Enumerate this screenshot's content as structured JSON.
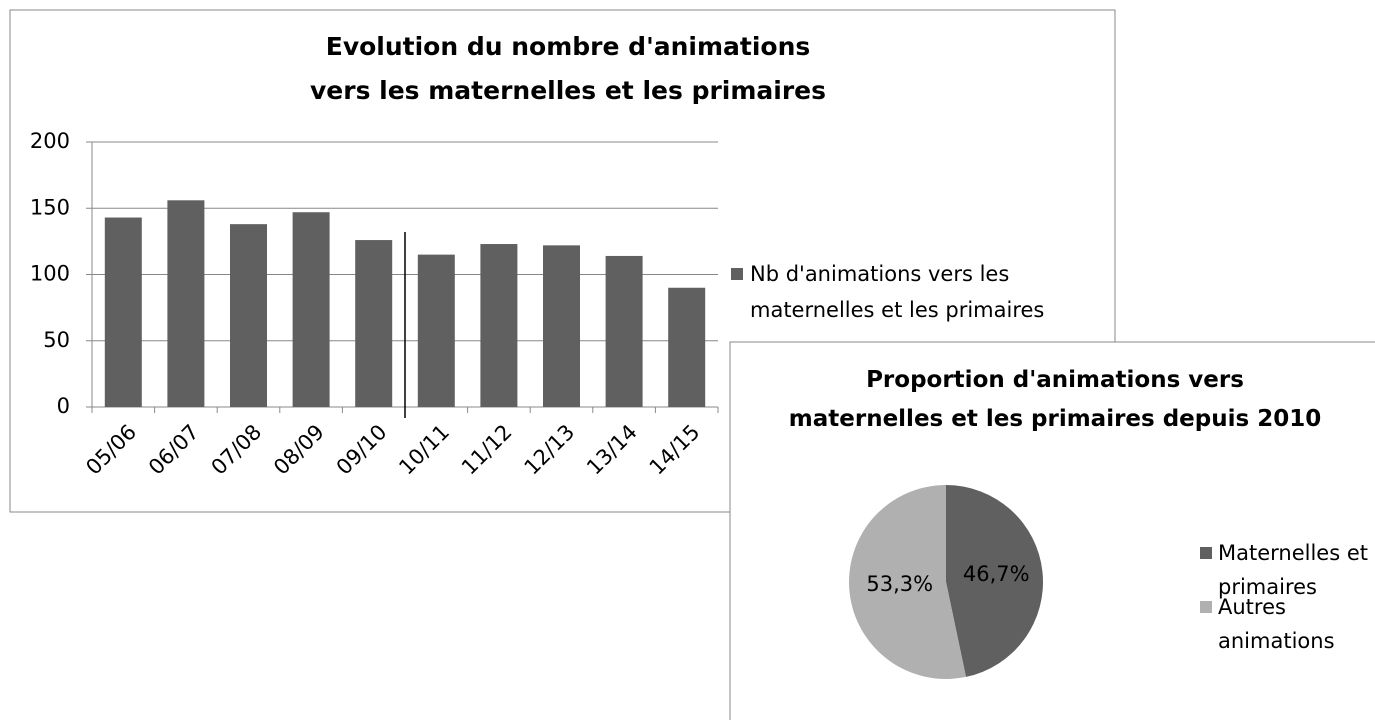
{
  "chart_data": [
    {
      "type": "bar",
      "title": "Evolution du nombre d'animations\nvers les maternelles et les primaires",
      "categories": [
        "05/06",
        "06/07",
        "07/08",
        "08/09",
        "09/10",
        "10/11",
        "11/12",
        "12/13",
        "13/14",
        "14/15"
      ],
      "series": [
        {
          "name": "Nb d'animations vers les\nmaternelles et les primaires",
          "color": "#606060",
          "values": [
            143,
            156,
            138,
            147,
            126,
            115,
            123,
            122,
            114,
            90
          ]
        }
      ],
      "ylim": [
        0,
        200
      ],
      "yticks": [
        0,
        50,
        100,
        150,
        200
      ],
      "grid": true,
      "legend": "right"
    },
    {
      "type": "pie",
      "title": "Proportion d'animations vers\nmaternelles et les primaires depuis 2010",
      "categories": [
        "Maternelles et\nprimaires",
        "Autres\nanimations"
      ],
      "values": [
        46.7,
        53.3
      ],
      "value_labels": [
        "46,7%",
        "53,3%"
      ],
      "colors": [
        "#606060",
        "#b0b0b0"
      ],
      "legend": "right"
    }
  ]
}
